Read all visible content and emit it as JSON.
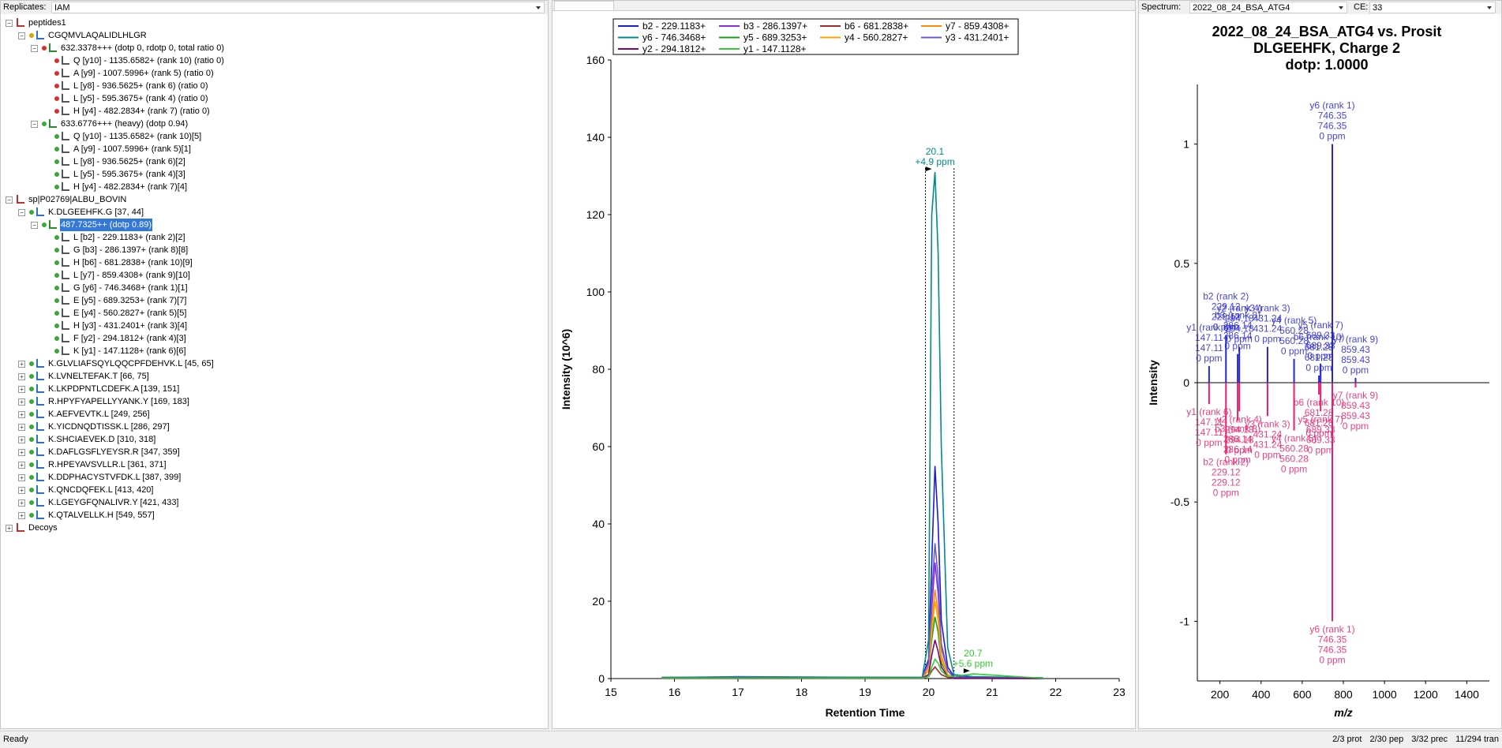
{
  "toolbar": {
    "replicates_label": "Replicates:",
    "replicates_value": "IAM",
    "spectrum_label": "Spectrum:",
    "spectrum_value": "2022_08_24_BSA_ATG4",
    "ce_label": "CE:",
    "ce_value": "33"
  },
  "tree": [
    {
      "text": "peptides1",
      "children": [
        {
          "text": "CGQMVLAQALIDLHLGR",
          "dot": "#d9a400",
          "children": [
            {
              "text": "632.3378+++ (dotp 0, rdotp 0, total ratio 0)",
              "dot": "#d83030",
              "children": [
                {
                  "text": "Q [y10] - 1135.6582+ (rank 10) (ratio 0)",
                  "dot": "#d83030"
                },
                {
                  "text": "A [y9] - 1007.5996+ (rank 5) (ratio 0)",
                  "dot": "#d83030"
                },
                {
                  "text": "L [y8] - 936.5625+ (rank 6) (ratio 0)",
                  "dot": "#d83030"
                },
                {
                  "text": "L [y5] - 595.3675+ (rank 4) (ratio 0)",
                  "dot": "#d83030"
                },
                {
                  "text": "H [y4] - 482.2834+ (rank 7) (ratio 0)",
                  "dot": "#d83030"
                }
              ]
            },
            {
              "text": "633.6776+++ (heavy) (dotp 0.94)",
              "dot": "#3aa63a",
              "children": [
                {
                  "text": "Q [y10] - 1135.6582+ (rank 10)[5]",
                  "dot": "#3aa63a"
                },
                {
                  "text": "A [y9] - 1007.5996+ (rank 5)[1]",
                  "dot": "#3aa63a"
                },
                {
                  "text": "L [y8] - 936.5625+ (rank 6)[2]",
                  "dot": "#3aa63a"
                },
                {
                  "text": "L [y5] - 595.3675+ (rank 4)[3]",
                  "dot": "#3aa63a"
                },
                {
                  "text": "H [y4] - 482.2834+ (rank 7)[4]",
                  "dot": "#3aa63a"
                }
              ]
            }
          ]
        }
      ]
    },
    {
      "text": "sp|P02769|ALBU_BOVIN",
      "children": [
        {
          "text": "K.DLGEEHFK.G [37, 44]",
          "dot": "#3aa63a",
          "children": [
            {
              "text": "487.7325++ (dotp 0.89)",
              "dot": "#3aa63a",
              "selected": true,
              "children": [
                {
                  "text": "L [b2] - 229.1183+ (rank 2)[2]",
                  "dot": "#3aa63a"
                },
                {
                  "text": "G [b3] - 286.1397+ (rank 8)[8]",
                  "dot": "#3aa63a"
                },
                {
                  "text": "H [b6] - 681.2838+ (rank 10)[9]",
                  "dot": "#3aa63a"
                },
                {
                  "text": "L [y7] - 859.4308+ (rank 9)[10]",
                  "dot": "#3aa63a"
                },
                {
                  "text": "G [y6] - 746.3468+ (rank 1)[1]",
                  "dot": "#3aa63a"
                },
                {
                  "text": "E [y5] - 689.3253+ (rank 7)[7]",
                  "dot": "#3aa63a"
                },
                {
                  "text": "E [y4] - 560.2827+ (rank 5)[5]",
                  "dot": "#3aa63a"
                },
                {
                  "text": "H [y3] - 431.2401+ (rank 3)[4]",
                  "dot": "#3aa63a"
                },
                {
                  "text": "F [y2] - 294.1812+ (rank 4)[3]",
                  "dot": "#3aa63a"
                },
                {
                  "text": "K [y1] - 147.1128+ (rank 6)[6]",
                  "dot": "#3aa63a"
                }
              ]
            }
          ]
        },
        {
          "text": "K.GLVLIAFSQYLQQCPFDEHVK.L [45, 65]",
          "dot": "#3aa63a",
          "collapsed": true
        },
        {
          "text": "K.LVNELTEFAK.T [66, 75]",
          "dot": "#3aa63a",
          "collapsed": true
        },
        {
          "text": "K.LKPDPNTLCDEFK.A [139, 151]",
          "dot": "#3aa63a",
          "collapsed": true
        },
        {
          "text": "R.HPYFYAPELLYYANK.Y [169, 183]",
          "dot": "#3aa63a",
          "collapsed": true
        },
        {
          "text": "K.AEFVEVTK.L [249, 256]",
          "dot": "#3aa63a",
          "collapsed": true
        },
        {
          "text": "K.YICDNQDTISSK.L [286, 297]",
          "dot": "#3aa63a",
          "collapsed": true
        },
        {
          "text": "K.SHCIAEVEK.D [310, 318]",
          "dot": "#3aa63a",
          "collapsed": true
        },
        {
          "text": "K.DAFLGSFLYEYSR.R [347, 359]",
          "dot": "#3aa63a",
          "collapsed": true
        },
        {
          "text": "R.HPEYAVSVLLR.L [361, 371]",
          "dot": "#3aa63a",
          "collapsed": true
        },
        {
          "text": "K.DDPHACYSTVFDK.L [387, 399]",
          "dot": "#3aa63a",
          "collapsed": true
        },
        {
          "text": "K.QNCDQFEK.L [413, 420]",
          "dot": "#3aa63a",
          "collapsed": true
        },
        {
          "text": "K.LGEYGFQNALIVR.Y [421, 433]",
          "dot": "#3aa63a",
          "collapsed": true
        },
        {
          "text": "K.QTALVELLK.H [549, 557]",
          "dot": "#3aa63a",
          "collapsed": true
        }
      ]
    },
    {
      "text": "Decoys",
      "collapsed": true
    }
  ],
  "chart_data": [
    {
      "type": "line",
      "x_label": "Retention Time",
      "y_label": "Intensity (10^6)",
      "x": [
        15.8,
        17,
        19.9,
        20.0,
        20.05,
        20.1,
        20.15,
        20.2,
        20.3,
        20.4,
        20.7,
        21.8
      ],
      "xlim": [
        15,
        23
      ],
      "xticks": [
        15,
        16,
        17,
        18,
        19,
        20,
        21,
        22,
        23
      ],
      "ylim": [
        0,
        160
      ],
      "yticks": [
        0,
        20,
        40,
        60,
        80,
        100,
        120,
        140,
        160
      ],
      "peak_bounds": [
        19.95,
        20.4
      ],
      "series": [
        {
          "name": "b2 - 229.1183+",
          "color": "#1c1cd0",
          "values": [
            0.3,
            0.3,
            0.3,
            5,
            30,
            55,
            40,
            15,
            3,
            0.5,
            0.3,
            0.2
          ]
        },
        {
          "name": "b3 - 286.1397+",
          "color": "#8a2be2",
          "values": [
            0.2,
            0.5,
            0.2,
            3,
            18,
            30,
            22,
            8,
            2,
            0.3,
            0.2,
            0.1
          ]
        },
        {
          "name": "b6 - 681.2838+",
          "color": "#a52a2a",
          "values": [
            0,
            0,
            0,
            0.5,
            2,
            3,
            2,
            1,
            0.3,
            0,
            0,
            0
          ]
        },
        {
          "name": "y7 - 859.4308+",
          "color": "#ff8c00",
          "values": [
            0.1,
            0.2,
            0.1,
            3,
            14,
            23,
            17,
            6,
            1,
            0.2,
            0.1,
            0.1
          ]
        },
        {
          "name": "y6 - 746.3468+",
          "color": "#008b8b",
          "values": [
            0.3,
            0.4,
            0.3,
            10,
            120,
            131,
            110,
            60,
            8,
            1,
            0.5,
            0.2
          ]
        },
        {
          "name": "y5 - 689.3253+",
          "color": "#1aa01a",
          "values": [
            0.1,
            0.1,
            0.1,
            2,
            10,
            16,
            12,
            4,
            1,
            0.2,
            0.1,
            0.1
          ]
        },
        {
          "name": "y4 - 560.2827+",
          "color": "#ffa500",
          "values": [
            0.1,
            0.1,
            0.1,
            2,
            12,
            20,
            15,
            5,
            1,
            0.2,
            0.1,
            0.1
          ]
        },
        {
          "name": "y3 - 431.2401+",
          "color": "#6a5acd",
          "values": [
            0.2,
            0.2,
            0.2,
            4,
            22,
            35,
            26,
            9,
            2,
            0.3,
            0.2,
            0.1
          ]
        },
        {
          "name": "y2 - 294.1812+",
          "color": "#800080",
          "values": [
            0.1,
            0.1,
            0.1,
            1,
            6,
            10,
            7,
            3,
            0.5,
            0.1,
            0.1,
            0
          ]
        },
        {
          "name": "y1 - 147.1128+",
          "color": "#32cd32",
          "values": [
            0.1,
            0.1,
            0.1,
            0.5,
            3,
            5,
            4,
            2,
            0.5,
            0.5,
            1.2,
            0.1
          ]
        }
      ],
      "annotations": [
        {
          "rt": 20.1,
          "ppm": "+4.9 ppm",
          "intensity": 131,
          "color": "#008b8b"
        },
        {
          "rt": 20.7,
          "ppm": "+5.6 ppm",
          "intensity": 1.2,
          "color": "#32cd32"
        }
      ]
    },
    {
      "type": "mirror",
      "title": [
        "2022_08_24_BSA_ATG4 vs. Prosit",
        "DLGEEHFK, Charge 2",
        "dotp: 1.0000"
      ],
      "x_label": "m/z",
      "y_label": "Intensity",
      "xlim": [
        90,
        1510
      ],
      "xticks": [
        200,
        400,
        600,
        800,
        1000,
        1200,
        1400
      ],
      "ylim": [
        -1.25,
        1.25
      ],
      "yticks": [
        -1,
        -0.5,
        0,
        0.5,
        1
      ],
      "top_color": "#2626d0",
      "bottom_color": "#e61e6e",
      "peaks": [
        {
          "label": "y1 (rank 6)",
          "mz": 147.11,
          "ppm": "0 ppm",
          "top": 0.07,
          "bottom": -0.09
        },
        {
          "label": "b2 (rank 2)",
          "mz": 229.12,
          "ppm": "0 ppm",
          "top": 0.2,
          "bottom": -0.3
        },
        {
          "label": "b3 (rank 8)",
          "mz": 286.14,
          "ppm": "0 ppm",
          "top": 0.12,
          "bottom": -0.16
        },
        {
          "label": "y2 (rank 4)",
          "mz": 294.18,
          "ppm": "0 ppm",
          "top": 0.15,
          "bottom": -0.12
        },
        {
          "label": "y3 (rank 3)",
          "mz": 431.24,
          "ppm": "0 ppm",
          "top": 0.15,
          "bottom": -0.14
        },
        {
          "label": "y4 (rank 5)",
          "mz": 560.28,
          "ppm": "0 ppm",
          "top": 0.1,
          "bottom": -0.2
        },
        {
          "label": "b6 (rank 10)",
          "mz": 681.28,
          "ppm": "0 ppm",
          "top": 0.03,
          "bottom": -0.05
        },
        {
          "label": "y5 (rank 7)",
          "mz": 689.33,
          "ppm": "0 ppm",
          "top": 0.08,
          "bottom": -0.12
        },
        {
          "label": "y6 (rank 1)",
          "mz": 746.35,
          "ppm": "0 ppm",
          "top": 1,
          "bottom": -1
        },
        {
          "label": "y7 (rank 9)",
          "mz": 859.43,
          "ppm": "0 ppm",
          "top": 0.02,
          "bottom": -0.02
        }
      ]
    }
  ],
  "status": {
    "left": "Ready",
    "counts": [
      "2/3 prot",
      "2/30 pep",
      "3/32 prec",
      "11/294 tran"
    ]
  }
}
